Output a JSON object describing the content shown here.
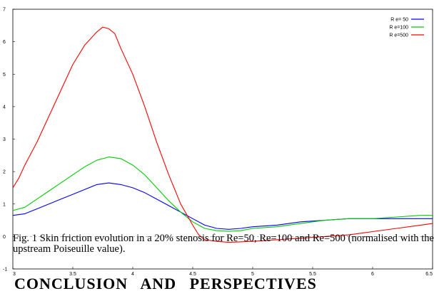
{
  "chart_data": {
    "type": "line",
    "title": "",
    "xlabel": "",
    "ylabel": "",
    "xlim": [
      3,
      6.5
    ],
    "ylim": [
      -1,
      7
    ],
    "xticks": [
      "3",
      "3.5",
      "4",
      "4.5",
      "5",
      "5.5",
      "6",
      "6.5"
    ],
    "yticks": [
      "-1",
      "0",
      "1",
      "2",
      "3",
      "4",
      "5",
      "6",
      "7"
    ],
    "zero_line": "dashed",
    "legend_position": "top-right",
    "series": [
      {
        "name": "R e= 50",
        "color": "#0000ff",
        "points": [
          [
            3,
            0.65
          ],
          [
            3.1,
            0.7
          ],
          [
            3.2,
            0.85
          ],
          [
            3.3,
            1.0
          ],
          [
            3.4,
            1.15
          ],
          [
            3.5,
            1.3
          ],
          [
            3.6,
            1.45
          ],
          [
            3.7,
            1.6
          ],
          [
            3.8,
            1.65
          ],
          [
            3.9,
            1.6
          ],
          [
            4.0,
            1.5
          ],
          [
            4.1,
            1.35
          ],
          [
            4.2,
            1.15
          ],
          [
            4.3,
            0.95
          ],
          [
            4.4,
            0.75
          ],
          [
            4.5,
            0.55
          ],
          [
            4.6,
            0.35
          ],
          [
            4.7,
            0.25
          ],
          [
            4.8,
            0.22
          ],
          [
            4.9,
            0.25
          ],
          [
            5.0,
            0.3
          ],
          [
            5.2,
            0.35
          ],
          [
            5.4,
            0.45
          ],
          [
            5.6,
            0.5
          ],
          [
            5.8,
            0.55
          ],
          [
            6.0,
            0.55
          ],
          [
            6.2,
            0.55
          ],
          [
            6.4,
            0.55
          ],
          [
            6.5,
            0.55
          ]
        ]
      },
      {
        "name": "R e=100",
        "color": "#00cc00",
        "points": [
          [
            3,
            0.8
          ],
          [
            3.1,
            0.9
          ],
          [
            3.2,
            1.15
          ],
          [
            3.3,
            1.4
          ],
          [
            3.4,
            1.65
          ],
          [
            3.5,
            1.9
          ],
          [
            3.6,
            2.15
          ],
          [
            3.7,
            2.35
          ],
          [
            3.8,
            2.45
          ],
          [
            3.9,
            2.4
          ],
          [
            4.0,
            2.2
          ],
          [
            4.1,
            1.9
          ],
          [
            4.2,
            1.5
          ],
          [
            4.3,
            1.1
          ],
          [
            4.4,
            0.75
          ],
          [
            4.5,
            0.45
          ],
          [
            4.6,
            0.25
          ],
          [
            4.7,
            0.18
          ],
          [
            4.8,
            0.16
          ],
          [
            4.9,
            0.18
          ],
          [
            5.0,
            0.25
          ],
          [
            5.2,
            0.3
          ],
          [
            5.4,
            0.4
          ],
          [
            5.6,
            0.5
          ],
          [
            5.8,
            0.55
          ],
          [
            6.0,
            0.55
          ],
          [
            6.2,
            0.6
          ],
          [
            6.4,
            0.65
          ],
          [
            6.5,
            0.65
          ]
        ]
      },
      {
        "name": "R e=500",
        "color": "#ff0000",
        "points": [
          [
            3,
            1.5
          ],
          [
            3.05,
            1.8
          ],
          [
            3.1,
            2.2
          ],
          [
            3.2,
            2.9
          ],
          [
            3.3,
            3.7
          ],
          [
            3.4,
            4.5
          ],
          [
            3.5,
            5.3
          ],
          [
            3.6,
            5.9
          ],
          [
            3.7,
            6.3
          ],
          [
            3.75,
            6.45
          ],
          [
            3.8,
            6.4
          ],
          [
            3.85,
            6.25
          ],
          [
            3.9,
            5.8
          ],
          [
            4.0,
            5.0
          ],
          [
            4.1,
            4.0
          ],
          [
            4.2,
            2.9
          ],
          [
            4.3,
            1.9
          ],
          [
            4.4,
            1.0
          ],
          [
            4.5,
            0.35
          ],
          [
            4.55,
            0.05
          ],
          [
            4.6,
            -0.1
          ],
          [
            4.7,
            -0.15
          ],
          [
            4.8,
            -0.18
          ],
          [
            5.0,
            -0.15
          ],
          [
            5.2,
            -0.1
          ],
          [
            5.4,
            -0.05
          ],
          [
            5.6,
            0.0
          ],
          [
            5.8,
            0.05
          ],
          [
            6.0,
            0.15
          ],
          [
            6.2,
            0.25
          ],
          [
            6.4,
            0.35
          ],
          [
            6.5,
            0.4
          ]
        ]
      }
    ]
  },
  "caption": "Fig. 1 Skin friction evolution in a 20% stenosis for Re=50, Re=100 and Re=500 (normalised with the upstream Poiseuille value).",
  "heading": "CONCLUSION AND PERSPECTIVES"
}
